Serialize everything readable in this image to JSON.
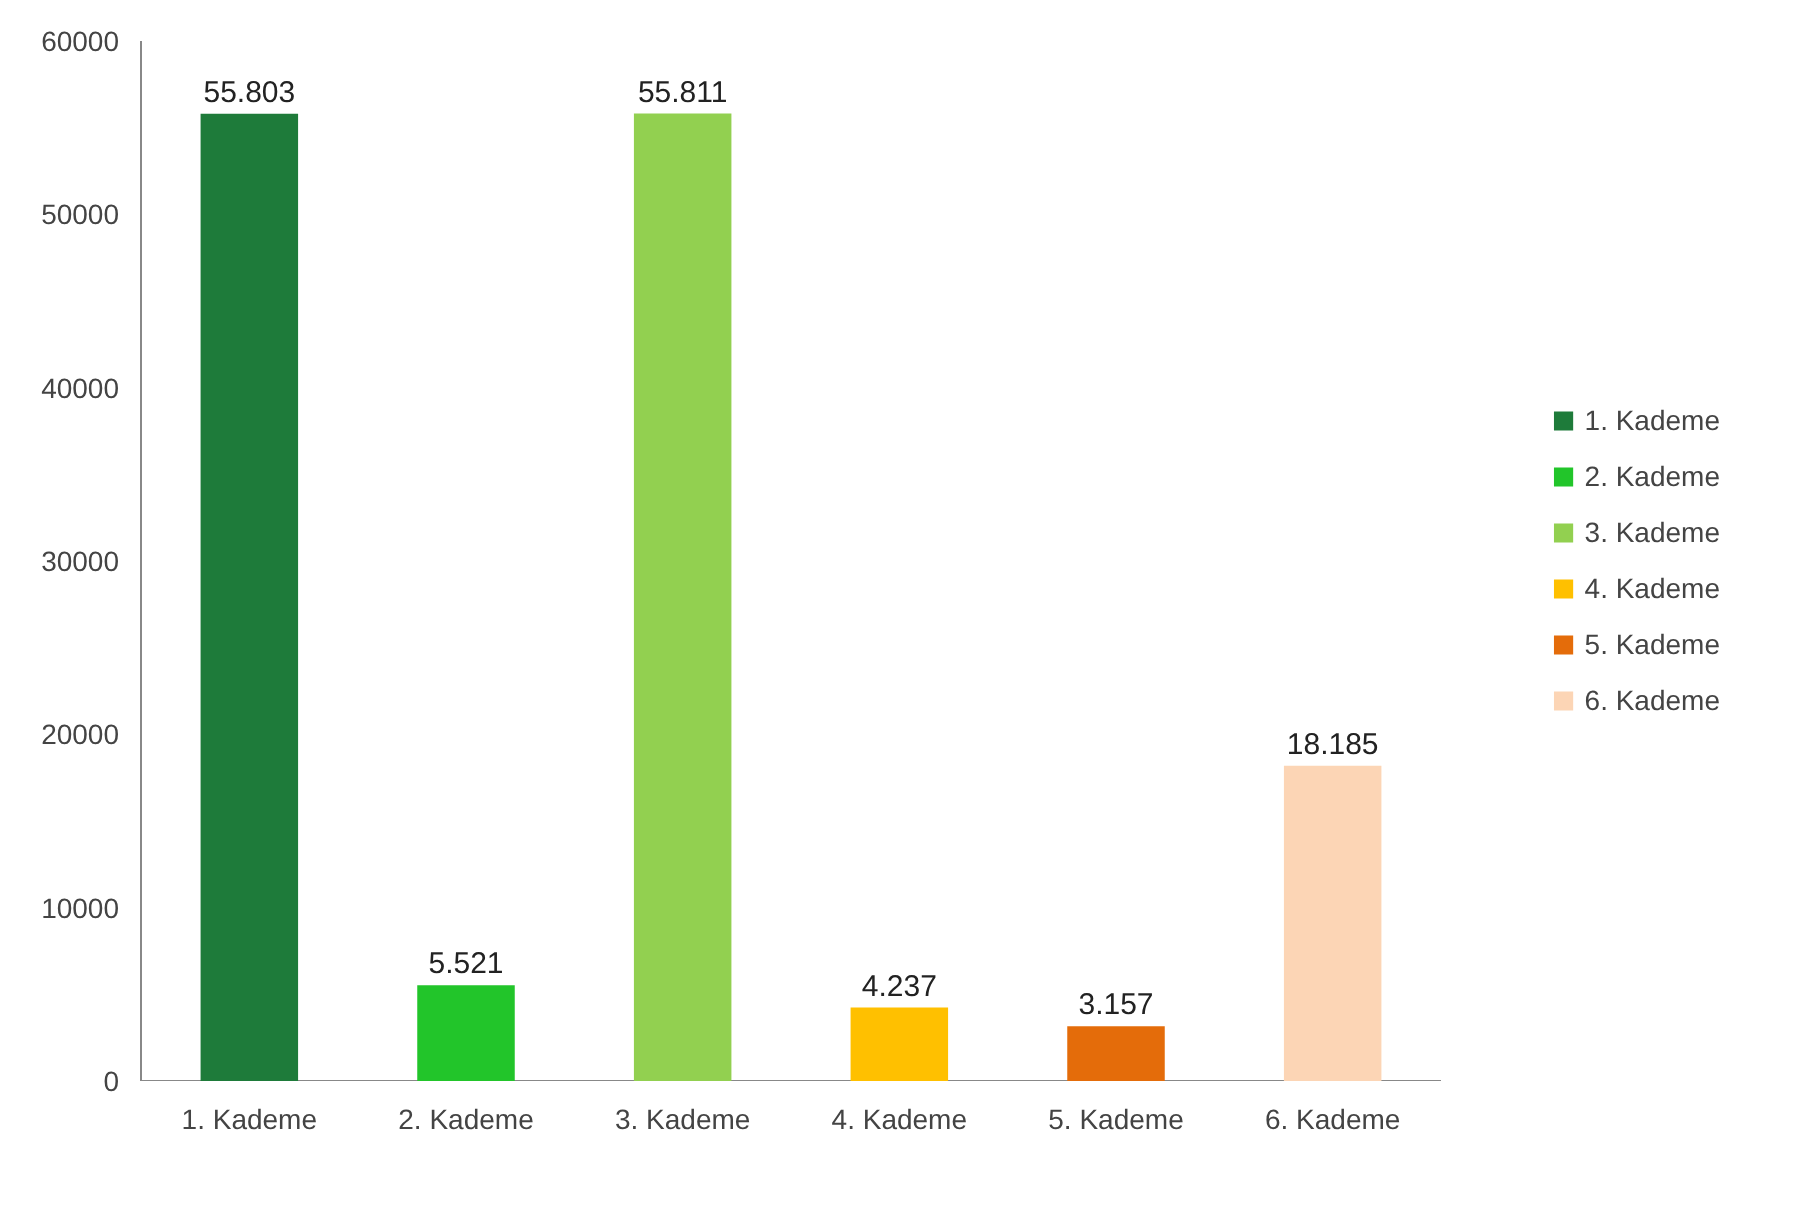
{
  "chart_data": {
    "type": "bar",
    "categories": [
      "1. Kademe",
      "2. Kademe",
      "3. Kademe",
      "4. Kademe",
      "5. Kademe",
      "6. Kademe"
    ],
    "series": [
      {
        "name": "1. Kademe",
        "color": "#1e7b3a",
        "values": [
          55803,
          null,
          null,
          null,
          null,
          null
        ],
        "value_labels": [
          "55.803",
          null,
          null,
          null,
          null,
          null
        ]
      },
      {
        "name": "2. Kademe",
        "color": "#22c52a",
        "values": [
          null,
          5521,
          null,
          null,
          null,
          null
        ],
        "value_labels": [
          null,
          "5.521",
          null,
          null,
          null,
          null
        ]
      },
      {
        "name": "3. Kademe",
        "color": "#92d050",
        "values": [
          null,
          null,
          55811,
          null,
          null,
          null
        ],
        "value_labels": [
          null,
          null,
          "55.811",
          null,
          null,
          null
        ]
      },
      {
        "name": "4. Kademe",
        "color": "#ffc000",
        "values": [
          null,
          null,
          null,
          4237,
          null,
          null
        ],
        "value_labels": [
          null,
          null,
          null,
          "4.237",
          null,
          null
        ]
      },
      {
        "name": "5. Kademe",
        "color": "#e46c0a",
        "values": [
          null,
          null,
          null,
          null,
          3157,
          null
        ],
        "value_labels": [
          null,
          null,
          null,
          null,
          "3.157",
          null
        ]
      },
      {
        "name": "6. Kademe",
        "color": "#fcd5b5",
        "values": [
          null,
          null,
          null,
          null,
          null,
          18185
        ],
        "value_labels": [
          null,
          null,
          null,
          null,
          null,
          "18.185"
        ]
      }
    ],
    "ylim": [
      0,
      60000
    ],
    "yticks": [
      0,
      10000,
      20000,
      30000,
      40000,
      50000,
      60000
    ],
    "grid": false,
    "legend": "right"
  }
}
